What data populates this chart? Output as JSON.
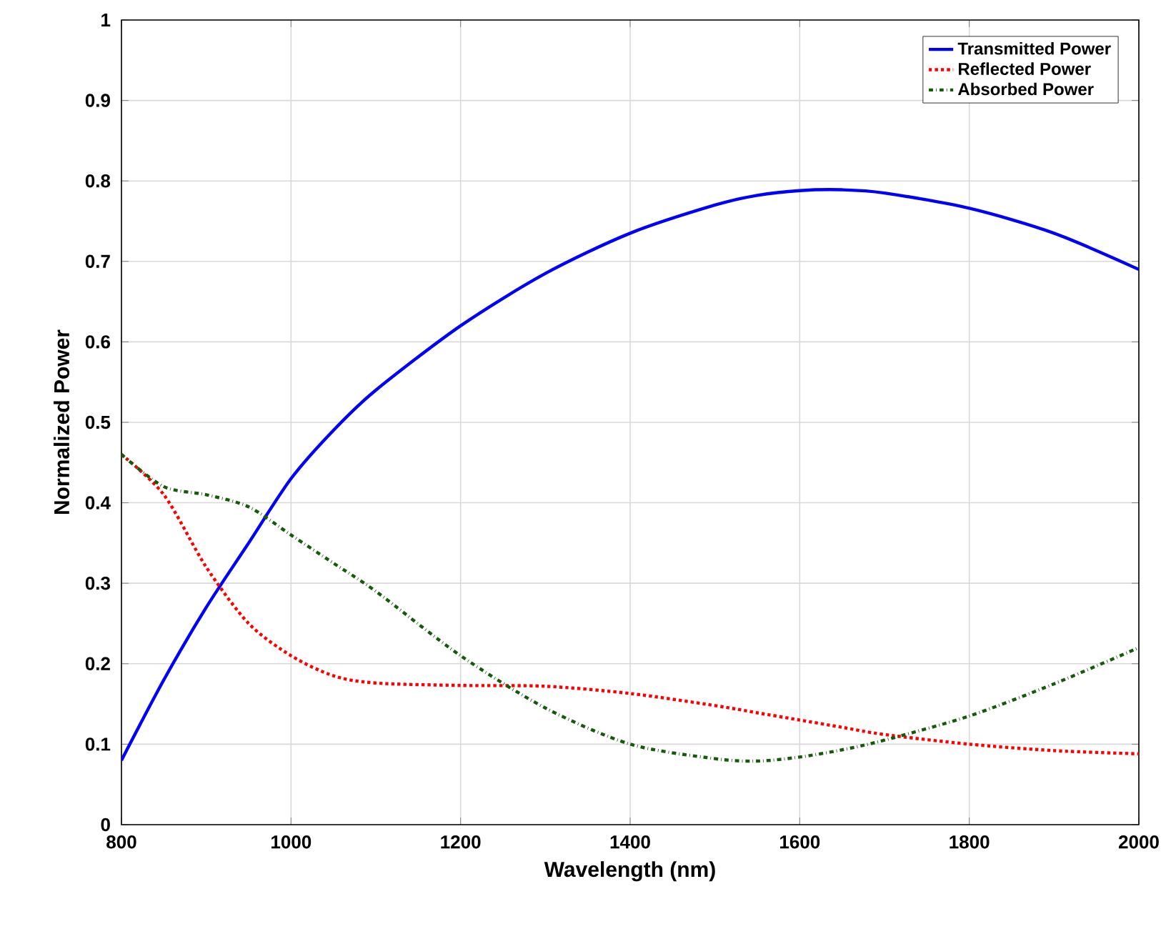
{
  "chart_data": {
    "type": "line",
    "xlabel": "Wavelength (nm)",
    "ylabel": "Normalized Power",
    "xlim": [
      800,
      2000
    ],
    "ylim": [
      0,
      1
    ],
    "xticks": [
      800,
      1000,
      1200,
      1400,
      1600,
      1800,
      2000
    ],
    "yticks": [
      0,
      0.1,
      0.2,
      0.3,
      0.4,
      0.5,
      0.6,
      0.7,
      0.8,
      0.9,
      1
    ],
    "grid": true,
    "legend": "top right",
    "x": [
      800,
      850,
      900,
      950,
      1000,
      1050,
      1100,
      1200,
      1300,
      1400,
      1500,
      1550,
      1600,
      1650,
      1700,
      1800,
      1900,
      2000
    ],
    "series": [
      {
        "name": "Transmitted Power",
        "color": "#0000ff",
        "line_style": "solid",
        "values": [
          0.08,
          0.18,
          0.27,
          0.35,
          0.43,
          0.49,
          0.54,
          0.62,
          0.685,
          0.735,
          0.77,
          0.782,
          0.788,
          0.789,
          0.785,
          0.766,
          0.735,
          0.69
        ]
      },
      {
        "name": "Reflected Power",
        "color": "#ff0000",
        "line_style": "dotted",
        "values": [
          0.46,
          0.41,
          0.32,
          0.25,
          0.21,
          0.185,
          0.176,
          0.173,
          0.172,
          0.163,
          0.148,
          0.139,
          0.13,
          0.121,
          0.112,
          0.1,
          0.092,
          0.088
        ]
      },
      {
        "name": "Absorbed Power",
        "color": "#145a0a",
        "line_style": "dashdot",
        "values": [
          0.46,
          0.42,
          0.41,
          0.395,
          0.36,
          0.325,
          0.29,
          0.21,
          0.145,
          0.1,
          0.082,
          0.079,
          0.084,
          0.093,
          0.105,
          0.135,
          0.175,
          0.22
        ]
      }
    ]
  }
}
